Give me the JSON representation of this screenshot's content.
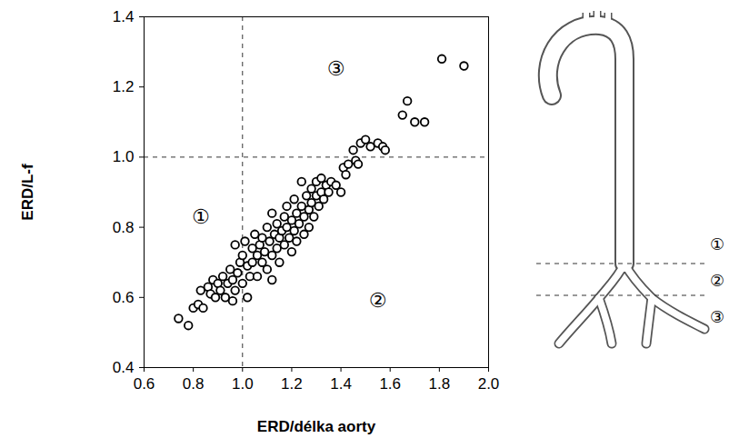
{
  "chart_data": {
    "type": "scatter",
    "x_label": "ERD/délka aorty",
    "y_label": "ERD/L-f",
    "marker": "circle",
    "color": "#000000",
    "xlim": [
      0.6,
      2.0
    ],
    "ylim": [
      0.4,
      1.4
    ],
    "xticks": [
      0.6,
      0.8,
      {
        "value": 1,
        "label": "1.0"
      },
      1.2,
      1.4,
      1.6,
      1.8,
      {
        "value": 2,
        "label": "2.0"
      }
    ],
    "yticks": [
      0.4,
      0.6,
      0.8,
      {
        "value": 1,
        "label": "1.0"
      },
      1.2,
      1.4
    ],
    "reference_lines": [
      {
        "axis": "x",
        "value": 1.0,
        "line_style": "dashed"
      },
      {
        "axis": "y",
        "value": 1.0,
        "line_style": "dashed"
      }
    ],
    "annotations": [
      {
        "text": "①",
        "x": 0.83,
        "y": 0.83
      },
      {
        "text": "②",
        "x": 1.55,
        "y": 0.59
      },
      {
        "text": "③",
        "x": 1.38,
        "y": 1.25
      }
    ],
    "x": [
      0.74,
      0.78,
      0.8,
      0.82,
      0.83,
      0.84,
      0.86,
      0.87,
      0.88,
      0.89,
      0.9,
      0.91,
      0.92,
      0.93,
      0.94,
      0.95,
      0.96,
      0.96,
      0.97,
      0.98,
      0.99,
      1.0,
      1.0,
      1.01,
      1.02,
      1.03,
      1.04,
      1.04,
      1.05,
      1.06,
      1.06,
      1.07,
      1.08,
      1.08,
      1.09,
      1.1,
      1.1,
      1.11,
      1.12,
      1.12,
      1.13,
      1.14,
      1.14,
      1.15,
      1.15,
      1.16,
      1.17,
      1.17,
      1.18,
      1.18,
      1.19,
      1.2,
      1.2,
      1.21,
      1.21,
      1.22,
      1.22,
      1.23,
      1.24,
      1.24,
      1.25,
      1.25,
      1.26,
      1.27,
      1.27,
      1.28,
      1.28,
      1.29,
      1.3,
      1.3,
      1.31,
      1.32,
      1.32,
      1.33,
      1.34,
      1.35,
      1.36,
      1.38,
      1.4,
      1.41,
      1.42,
      1.43,
      1.45,
      1.46,
      1.47,
      1.48,
      1.5,
      1.52,
      1.55,
      1.57,
      1.58,
      1.65,
      1.67,
      1.7,
      1.74,
      1.81,
      1.9,
      0.97,
      1.02,
      1.12
    ],
    "values": [
      0.54,
      0.52,
      0.57,
      0.58,
      0.62,
      0.57,
      0.63,
      0.61,
      0.65,
      0.6,
      0.64,
      0.62,
      0.66,
      0.6,
      0.64,
      0.68,
      0.59,
      0.65,
      0.62,
      0.67,
      0.7,
      0.64,
      0.72,
      0.76,
      0.69,
      0.66,
      0.74,
      0.7,
      0.78,
      0.72,
      0.66,
      0.75,
      0.7,
      0.77,
      0.73,
      0.68,
      0.8,
      0.76,
      0.84,
      0.72,
      0.78,
      0.74,
      0.81,
      0.7,
      0.77,
      0.79,
      0.83,
      0.75,
      0.86,
      0.8,
      0.77,
      0.82,
      0.73,
      0.88,
      0.79,
      0.84,
      0.76,
      0.81,
      0.93,
      0.86,
      0.83,
      0.78,
      0.89,
      0.85,
      0.8,
      0.91,
      0.87,
      0.83,
      0.89,
      0.93,
      0.86,
      0.94,
      0.9,
      0.88,
      0.92,
      0.9,
      0.93,
      0.92,
      0.9,
      0.97,
      0.95,
      0.98,
      1.02,
      0.99,
      0.98,
      1.04,
      1.05,
      1.03,
      1.04,
      1.03,
      1.02,
      1.12,
      1.16,
      1.1,
      1.1,
      1.28,
      1.26,
      0.75,
      0.6,
      0.65
    ]
  },
  "diagram": {
    "labels": [
      "①",
      "②",
      "③"
    ]
  }
}
